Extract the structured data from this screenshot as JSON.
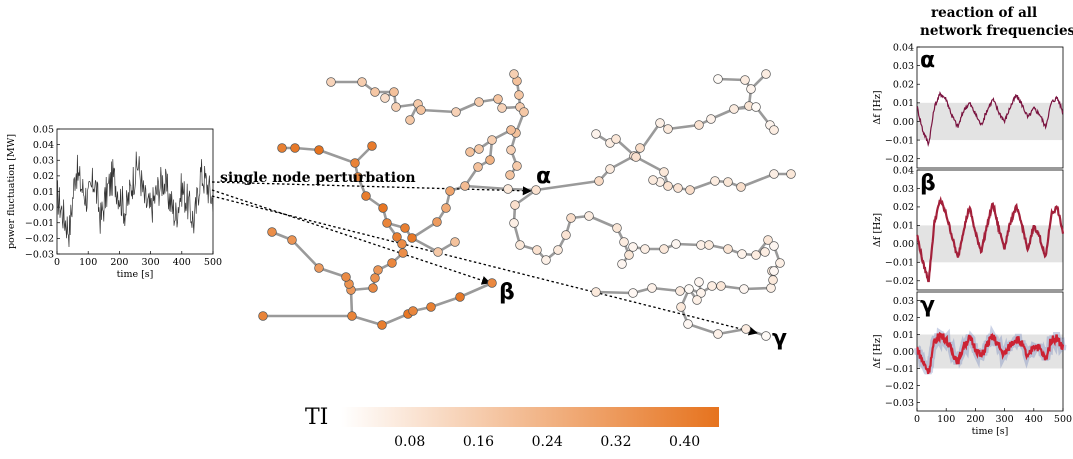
{
  "header": {
    "line1": "reaction of all",
    "line2": "network frequencies"
  },
  "annotation": {
    "perturbation": "single node perturbation"
  },
  "node_labels": {
    "alpha": "α",
    "beta": "β",
    "gamma": "γ"
  },
  "colorbar": {
    "label": "TI",
    "ticks": [
      "0.08",
      "0.16",
      "0.24",
      "0.32",
      "0.40"
    ],
    "tick_values": [
      0.08,
      0.16,
      0.24,
      0.32,
      0.4
    ],
    "range": [
      0.0,
      0.44
    ],
    "colors": {
      "low": "#ffffff",
      "high": "#e6731e"
    }
  },
  "colors": {
    "edge": "#9a9a9a",
    "arrow": "#000000",
    "band": "#e3e3e3",
    "alpha_line": "#7a1440",
    "beta_line": "#a3203a",
    "gamma_line": "#cc2233",
    "gamma_spread": "#6b7fb8"
  },
  "chart_data": [
    {
      "type": "line",
      "name_key": "power",
      "xlabel": "time [s]",
      "ylabel": "power fluctuation [MW]",
      "xlim": [
        0,
        500
      ],
      "ylim": [
        -0.03,
        0.05
      ],
      "xticks": [
        "0",
        "100",
        "200",
        "300",
        "400",
        "500"
      ],
      "yticks": [
        "−0.03",
        "−0.02",
        "−0.01",
        "0.00",
        "0.01",
        "0.02",
        "0.03",
        "0.04",
        "0.05"
      ],
      "x": [
        0,
        20,
        40,
        60,
        80,
        100,
        120,
        140,
        160,
        180,
        200,
        220,
        240,
        260,
        280,
        300,
        320,
        340,
        360,
        380,
        400,
        420,
        440,
        460,
        480,
        500
      ],
      "y": [
        0.008,
        -0.005,
        -0.015,
        0.025,
        0.012,
        0.005,
        0.018,
        -0.008,
        0.01,
        0.02,
        0.008,
        -0.003,
        0.015,
        0.028,
        0.005,
        -0.002,
        0.01,
        0.018,
        0.006,
        -0.006,
        0.012,
        0.002,
        -0.01,
        0.022,
        0.015,
        0.004
      ]
    },
    {
      "type": "line",
      "name_key": "alpha",
      "label": "α",
      "xlabel": "",
      "ylabel": "Δf [Hz]",
      "xlim": [
        0,
        500
      ],
      "ylim": [
        -0.025,
        0.04
      ],
      "xticks": [],
      "yticks": [
        "−0.02",
        "−0.01",
        "0.00",
        "0.01",
        "0.02",
        "0.03",
        "0.04"
      ],
      "band": [
        -0.01,
        0.01
      ],
      "x": [
        0,
        20,
        40,
        60,
        80,
        100,
        120,
        140,
        160,
        180,
        200,
        220,
        240,
        260,
        280,
        300,
        320,
        340,
        360,
        380,
        400,
        420,
        440,
        460,
        480,
        500
      ],
      "y": [
        0.008,
        -0.005,
        -0.012,
        0.008,
        0.015,
        0.012,
        0.003,
        -0.003,
        0.006,
        0.01,
        0.004,
        -0.002,
        0.006,
        0.012,
        0.005,
        0.0,
        0.008,
        0.014,
        0.009,
        0.002,
        0.007,
        0.004,
        -0.003,
        0.01,
        0.013,
        0.005
      ]
    },
    {
      "type": "line",
      "name_key": "beta",
      "label": "β",
      "xlabel": "",
      "ylabel": "Δf [Hz]",
      "xlim": [
        0,
        500
      ],
      "ylim": [
        -0.025,
        0.04
      ],
      "xticks": [],
      "yticks": [
        "−0.02",
        "−0.01",
        "0.00",
        "0.01",
        "0.02",
        "0.03",
        "0.04"
      ],
      "band": [
        -0.01,
        0.01
      ],
      "x": [
        0,
        20,
        40,
        60,
        80,
        100,
        120,
        140,
        160,
        180,
        200,
        220,
        240,
        260,
        280,
        300,
        320,
        340,
        360,
        380,
        400,
        420,
        440,
        460,
        480,
        500
      ],
      "y": [
        0.005,
        -0.01,
        -0.02,
        0.012,
        0.024,
        0.016,
        0.004,
        -0.008,
        0.008,
        0.02,
        0.006,
        -0.004,
        0.01,
        0.022,
        0.008,
        -0.002,
        0.012,
        0.02,
        0.01,
        -0.004,
        0.01,
        0.004,
        -0.008,
        0.016,
        0.02,
        0.006
      ]
    },
    {
      "type": "line",
      "name_key": "gamma",
      "label": "γ",
      "xlabel": "time [s]",
      "ylabel": "Δf [Hz]",
      "xlim": [
        0,
        500
      ],
      "ylim": [
        -0.035,
        0.035
      ],
      "xticks": [
        "0",
        "100",
        "200",
        "300",
        "400",
        "500"
      ],
      "yticks": [
        "−0.03",
        "−0.02",
        "−0.01",
        "0.00",
        "0.01",
        "0.02",
        "0.03"
      ],
      "band": [
        -0.01,
        0.01
      ],
      "x": [
        0,
        20,
        40,
        60,
        80,
        100,
        120,
        140,
        160,
        180,
        200,
        220,
        240,
        260,
        280,
        300,
        320,
        340,
        360,
        380,
        400,
        420,
        440,
        460,
        480,
        500
      ],
      "y": [
        0.002,
        -0.006,
        -0.012,
        0.006,
        0.01,
        0.007,
        0.0,
        -0.006,
        0.003,
        0.008,
        0.002,
        -0.003,
        0.004,
        0.009,
        0.003,
        -0.002,
        0.004,
        0.008,
        0.004,
        -0.004,
        0.004,
        0.002,
        -0.005,
        0.007,
        0.008,
        0.002
      ]
    }
  ]
}
